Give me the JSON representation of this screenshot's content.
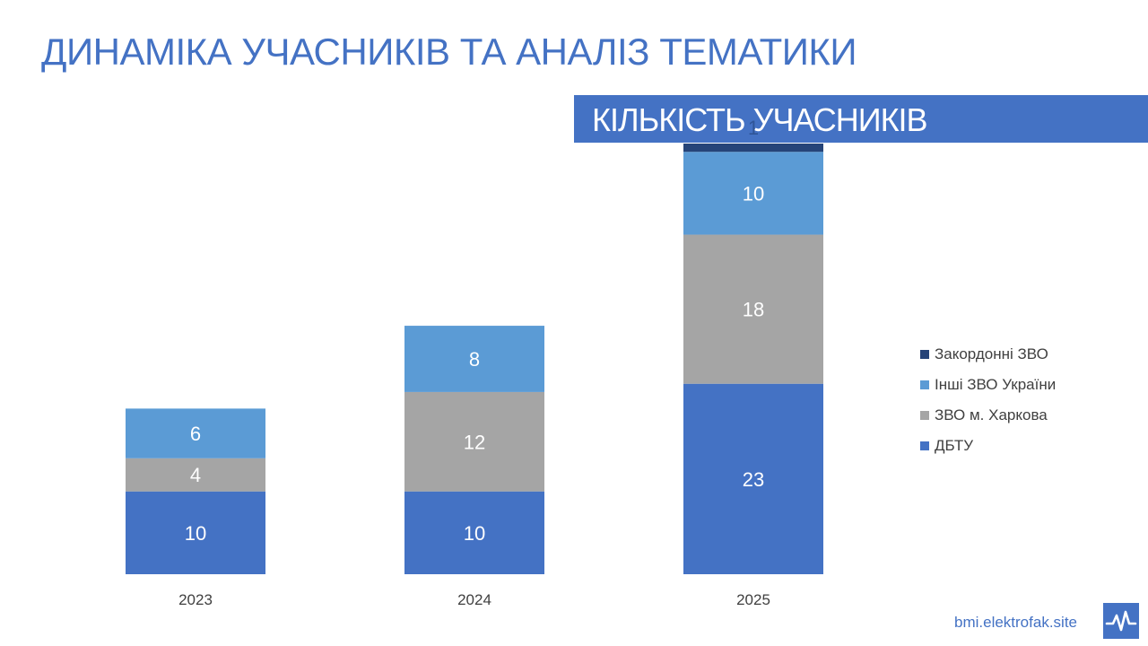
{
  "slide": {
    "title": "ДИНАМІКА УЧАСНИКІВ ТА АНАЛІЗ ТЕМАТИКИ",
    "section_title": "КІЛЬКІСТЬ УЧАСНИКІВ",
    "footer_site": "bmi.elektrofak.site",
    "accent_color": "#4472c4",
    "logo_icon": "pulse-line-icon"
  },
  "chart_data": {
    "type": "bar",
    "stacked": true,
    "categories": [
      "2023",
      "2024",
      "2025"
    ],
    "series": [
      {
        "name": "ДБТУ",
        "values": [
          10,
          10,
          23
        ],
        "color": "#4472c4"
      },
      {
        "name": "ЗВО м. Харкова",
        "values": [
          4,
          12,
          18
        ],
        "color": "#a5a5a5"
      },
      {
        "name": "Інші ЗВО України",
        "values": [
          6,
          8,
          10
        ],
        "color": "#5b9bd5"
      },
      {
        "name": "Закордонні ЗВО",
        "values": [
          null,
          null,
          1
        ],
        "color": "#264478"
      }
    ],
    "data_labels": true,
    "grid": false,
    "legend_position": "right",
    "legend_order": [
      "Закордонні ЗВО",
      "Інші ЗВО України",
      "ЗВО м. Харкова",
      "ДБТУ"
    ],
    "ylim": [
      0,
      52
    ]
  }
}
